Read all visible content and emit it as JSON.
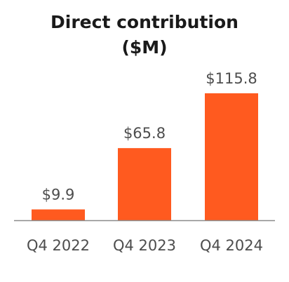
{
  "chart_data": {
    "type": "bar",
    "title": "Direct contribution",
    "subtitle": "($M)",
    "categories": [
      "Q4 2022",
      "Q4 2023",
      "Q4 2024"
    ],
    "values": [
      9.9,
      65.8,
      115.8
    ],
    "value_labels": [
      "$9.9",
      "$65.8",
      "$115.8"
    ],
    "xlabel": "",
    "ylabel": "",
    "ylim": [
      0,
      120
    ],
    "grid": false,
    "legend": "none",
    "colors": {
      "bar": "#ff5a1f",
      "baseline": "#8a8a8a",
      "text": "#4d4d4d",
      "title": "#1a1a1a"
    }
  }
}
